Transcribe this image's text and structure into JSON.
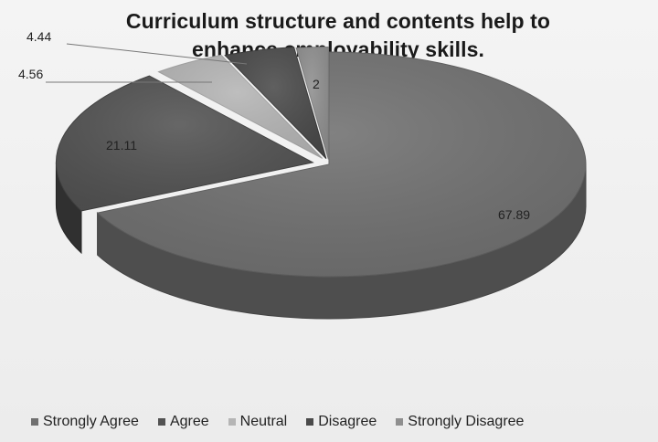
{
  "chart_data": {
    "type": "pie",
    "title": "Curriculum structure and contents help to enhance employability skills.",
    "title_lines": [
      "Curriculum structure and contents help to",
      "enhance employability skills."
    ],
    "style": "3d-exploded",
    "legend_position": "bottom",
    "series": [
      {
        "category": "Strongly Agree",
        "value": 67.89,
        "label": "67.89",
        "color": "#707070"
      },
      {
        "category": "Agree",
        "value": 21.11,
        "label": "21.11",
        "color": "#525252"
      },
      {
        "category": "Neutral",
        "value": 4.56,
        "label": "4.56",
        "color": "#b5b5b5"
      },
      {
        "category": "Disagree",
        "value": 4.44,
        "label": "4.44",
        "color": "#4a4a4a"
      },
      {
        "category": "Strongly Disagree",
        "value": 2,
        "label": "2",
        "color": "#8f8f8f"
      }
    ]
  }
}
